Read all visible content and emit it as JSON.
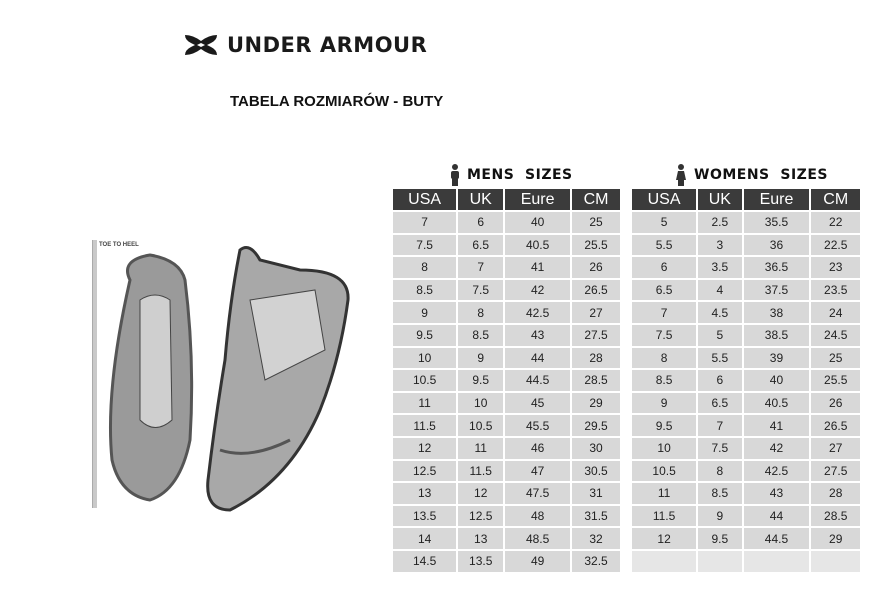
{
  "brand": {
    "name": "UNDER ARMOUR",
    "logo_color": "#1a1a1a"
  },
  "subtitle": "TABELA ROZMIARÓW - BUTY",
  "image": {
    "ruler_label": "TOE TO HEEL"
  },
  "colors": {
    "header_bg": "#3b3b3b",
    "cell_bg": "#d8d8d8"
  },
  "mens": {
    "title": "MENS  SIZES",
    "icon": "man-icon",
    "columns": [
      "USA",
      "UK",
      "Eure",
      "CM"
    ],
    "rows": [
      [
        "7",
        "6",
        "40",
        "25"
      ],
      [
        "7.5",
        "6.5",
        "40.5",
        "25.5"
      ],
      [
        "8",
        "7",
        "41",
        "26"
      ],
      [
        "8.5",
        "7.5",
        "42",
        "26.5"
      ],
      [
        "9",
        "8",
        "42.5",
        "27"
      ],
      [
        "9.5",
        "8.5",
        "43",
        "27.5"
      ],
      [
        "10",
        "9",
        "44",
        "28"
      ],
      [
        "10.5",
        "9.5",
        "44.5",
        "28.5"
      ],
      [
        "11",
        "10",
        "45",
        "29"
      ],
      [
        "11.5",
        "10.5",
        "45.5",
        "29.5"
      ],
      [
        "12",
        "11",
        "46",
        "30"
      ],
      [
        "12.5",
        "11.5",
        "47",
        "30.5"
      ],
      [
        "13",
        "12",
        "47.5",
        "31"
      ],
      [
        "13.5",
        "12.5",
        "48",
        "31.5"
      ],
      [
        "14",
        "13",
        "48.5",
        "32"
      ],
      [
        "14.5",
        "13.5",
        "49",
        "32.5"
      ]
    ]
  },
  "womens": {
    "title": "WOMENS  SIZES",
    "icon": "woman-icon",
    "columns": [
      "USA",
      "UK",
      "Eure",
      "CM"
    ],
    "rows": [
      [
        "5",
        "2.5",
        "35.5",
        "22"
      ],
      [
        "5.5",
        "3",
        "36",
        "22.5"
      ],
      [
        "6",
        "3.5",
        "36.5",
        "23"
      ],
      [
        "6.5",
        "4",
        "37.5",
        "23.5"
      ],
      [
        "7",
        "4.5",
        "38",
        "24"
      ],
      [
        "7.5",
        "5",
        "38.5",
        "24.5"
      ],
      [
        "8",
        "5.5",
        "39",
        "25"
      ],
      [
        "8.5",
        "6",
        "40",
        "25.5"
      ],
      [
        "9",
        "6.5",
        "40.5",
        "26"
      ],
      [
        "9.5",
        "7",
        "41",
        "26.5"
      ],
      [
        "10",
        "7.5",
        "42",
        "27"
      ],
      [
        "10.5",
        "8",
        "42.5",
        "27.5"
      ],
      [
        "11",
        "8.5",
        "43",
        "28"
      ],
      [
        "11.5",
        "9",
        "44",
        "28.5"
      ],
      [
        "12",
        "9.5",
        "44.5",
        "29"
      ],
      [
        "",
        "",
        "",
        ""
      ]
    ]
  }
}
